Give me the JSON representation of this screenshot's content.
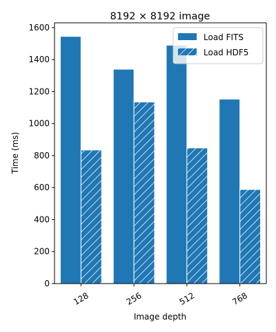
{
  "chart_data": {
    "type": "bar",
    "title": "8192 × 8192 image",
    "xlabel": "Image depth",
    "ylabel": "Time (ms)",
    "categories": [
      "128",
      "256",
      "512",
      "768"
    ],
    "series": [
      {
        "name": "Load FITS",
        "values": [
          1545,
          1340,
          1490,
          1153
        ],
        "color": "#1f77b4",
        "hatch": false
      },
      {
        "name": "Load HDF5",
        "values": [
          835,
          1135,
          848,
          588
        ],
        "color": "#1f77b4",
        "hatch": true
      }
    ],
    "ylim": [
      0,
      1630
    ],
    "yticks": [
      0,
      200,
      400,
      600,
      800,
      1000,
      1200,
      1400,
      1600
    ],
    "grid": false,
    "legend_position": "top-right",
    "x_tick_rotation": -30
  }
}
